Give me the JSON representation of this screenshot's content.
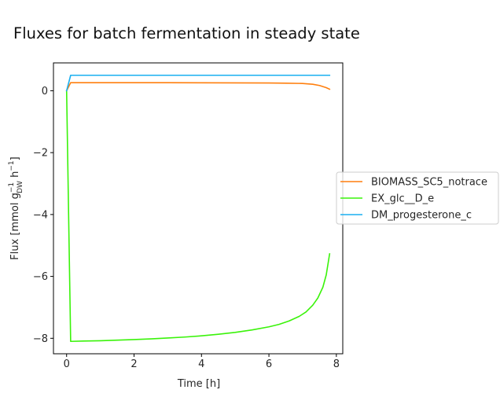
{
  "chart_data": {
    "type": "line",
    "title": "Fluxes for batch fermentation in steady state",
    "xlabel": "Time [h]",
    "ylabel": "Flux [mmol g_DW^-1 h^-1]",
    "ylabel_parts": {
      "pre": "Flux [mmol g",
      "sub": "DW",
      "sup_g": "−1",
      "h": " h",
      "sup_h": "−1",
      "post": "]"
    },
    "xlim": [
      -0.39,
      8.19
    ],
    "ylim": [
      -8.5,
      0.9
    ],
    "xticks": [
      0,
      2,
      4,
      6,
      8
    ],
    "xtick_labels": [
      "0",
      "2",
      "4",
      "6",
      "8"
    ],
    "yticks": [
      0,
      -2,
      -4,
      -6,
      -8
    ],
    "ytick_labels": [
      "0",
      "−2",
      "−4",
      "−6",
      "−8"
    ],
    "grid": false,
    "legend_placement": "outside-right",
    "series": [
      {
        "name": "BIOMASS_SC5_notrace",
        "color": "#ff7f0e",
        "points": [
          [
            0.0,
            0.0
          ],
          [
            0.12,
            0.26
          ],
          [
            1.0,
            0.26
          ],
          [
            2.0,
            0.26
          ],
          [
            3.0,
            0.26
          ],
          [
            4.0,
            0.258
          ],
          [
            5.0,
            0.255
          ],
          [
            6.0,
            0.25
          ],
          [
            6.5,
            0.245
          ],
          [
            7.0,
            0.235
          ],
          [
            7.3,
            0.21
          ],
          [
            7.5,
            0.17
          ],
          [
            7.7,
            0.1
          ],
          [
            7.8,
            0.05
          ]
        ]
      },
      {
        "name": "EX_glc__D_e",
        "color": "#3af30a",
        "points": [
          [
            0.0,
            0.0
          ],
          [
            0.12,
            -8.1
          ],
          [
            0.5,
            -8.09
          ],
          [
            1.0,
            -8.08
          ],
          [
            1.5,
            -8.06
          ],
          [
            2.0,
            -8.04
          ],
          [
            2.5,
            -8.02
          ],
          [
            3.0,
            -7.99
          ],
          [
            3.5,
            -7.96
          ],
          [
            4.0,
            -7.92
          ],
          [
            4.5,
            -7.87
          ],
          [
            5.0,
            -7.81
          ],
          [
            5.5,
            -7.73
          ],
          [
            6.0,
            -7.63
          ],
          [
            6.3,
            -7.55
          ],
          [
            6.6,
            -7.44
          ],
          [
            6.9,
            -7.29
          ],
          [
            7.1,
            -7.15
          ],
          [
            7.3,
            -6.93
          ],
          [
            7.45,
            -6.7
          ],
          [
            7.6,
            -6.35
          ],
          [
            7.7,
            -5.95
          ],
          [
            7.8,
            -5.27
          ]
        ]
      },
      {
        "name": "DM_progesterone_c",
        "color": "#1aaff0",
        "points": [
          [
            0.0,
            0.0
          ],
          [
            0.12,
            0.5
          ],
          [
            1.0,
            0.5
          ],
          [
            2.0,
            0.5
          ],
          [
            3.0,
            0.5
          ],
          [
            4.0,
            0.5
          ],
          [
            5.0,
            0.5
          ],
          [
            6.0,
            0.5
          ],
          [
            7.0,
            0.5
          ],
          [
            7.8,
            0.5
          ]
        ]
      }
    ]
  }
}
